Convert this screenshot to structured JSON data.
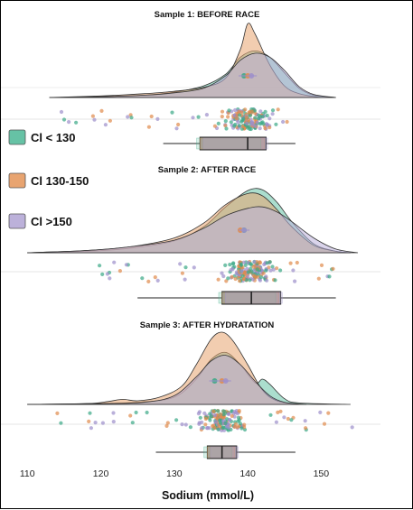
{
  "chart_data": {
    "type": "raincloud",
    "xlabel": "Sodium (mmol/L)",
    "xlim": [
      108,
      155
    ],
    "x_ticks": [
      110,
      120,
      130,
      140,
      150
    ],
    "grid": false,
    "legend": {
      "placement": "left",
      "entries": [
        {
          "label": "Cl < 130",
          "color": "#66c2a5"
        },
        {
          "label": "Cl  130-150",
          "color": "#e8a470"
        },
        {
          "label": "Cl  >150",
          "color": "#bcb1da"
        }
      ]
    },
    "panels": [
      {
        "title": "Sample 1: BEFORE RACE",
        "boxplot": {
          "whisker_low": 128.5,
          "q1": 133.5,
          "median": 140.0,
          "q3": 142.5,
          "whisker_high": 146.5
        },
        "points_range": [
          112,
          146
        ],
        "series": [
          {
            "name": "Cl < 130",
            "mean": 139.5,
            "density": [
              [
                113,
                0
              ],
              [
                120,
                0.01
              ],
              [
                126,
                0.03
              ],
              [
                130,
                0.07
              ],
              [
                134,
                0.15
              ],
              [
                137,
                0.3
              ],
              [
                139,
                0.52
              ],
              [
                141,
                0.6
              ],
              [
                143,
                0.52
              ],
              [
                145,
                0.32
              ],
              [
                147,
                0.12
              ],
              [
                149,
                0.03
              ],
              [
                152,
                0
              ]
            ]
          },
          {
            "name": "Cl  130-150",
            "mean": 140.0,
            "density": [
              [
                113,
                0
              ],
              [
                120,
                0.02
              ],
              [
                126,
                0.05
              ],
              [
                130,
                0.08
              ],
              [
                134,
                0.13
              ],
              [
                137,
                0.25
              ],
              [
                139,
                0.62
              ],
              [
                140,
                0.95
              ],
              [
                141,
                0.82
              ],
              [
                143,
                0.42
              ],
              [
                145,
                0.15
              ],
              [
                147,
                0.05
              ],
              [
                150,
                0
              ]
            ]
          },
          {
            "name": "Cl  >150",
            "mean": 140.5,
            "density": [
              [
                113,
                0
              ],
              [
                120,
                0.01
              ],
              [
                126,
                0.03
              ],
              [
                130,
                0.06
              ],
              [
                134,
                0.12
              ],
              [
                137,
                0.28
              ],
              [
                139,
                0.48
              ],
              [
                141,
                0.57
              ],
              [
                143,
                0.52
              ],
              [
                145,
                0.35
              ],
              [
                147,
                0.14
              ],
              [
                149,
                0.04
              ],
              [
                152,
                0
              ]
            ]
          }
        ]
      },
      {
        "title": "Sample 2: AFTER RACE",
        "boxplot": {
          "whisker_low": 125,
          "q1": 136.5,
          "median": 140.5,
          "q3": 144.5,
          "whisker_high": 152
        },
        "points_range": [
          117,
          152
        ],
        "series": [
          {
            "name": "Cl < 130",
            "mean": 139.5,
            "density": [
              [
                110,
                0
              ],
              [
                118,
                0.02
              ],
              [
                124,
                0.06
              ],
              [
                130,
                0.16
              ],
              [
                134,
                0.35
              ],
              [
                137,
                0.62
              ],
              [
                140,
                0.84
              ],
              [
                142,
                0.85
              ],
              [
                144,
                0.68
              ],
              [
                146,
                0.42
              ],
              [
                149,
                0.12
              ],
              [
                152,
                0.02
              ],
              [
                154,
                0
              ]
            ]
          },
          {
            "name": "Cl  130-150",
            "mean": 139.0,
            "density": [
              [
                110,
                0
              ],
              [
                118,
                0.03
              ],
              [
                124,
                0.08
              ],
              [
                130,
                0.2
              ],
              [
                134,
                0.4
              ],
              [
                137,
                0.65
              ],
              [
                140,
                0.8
              ],
              [
                142,
                0.77
              ],
              [
                144,
                0.58
              ],
              [
                146,
                0.35
              ],
              [
                149,
                0.1
              ],
              [
                152,
                0.02
              ],
              [
                154,
                0
              ]
            ]
          },
          {
            "name": "Cl  >150",
            "mean": 139.5,
            "density": [
              [
                110,
                0
              ],
              [
                118,
                0.03
              ],
              [
                124,
                0.08
              ],
              [
                130,
                0.17
              ],
              [
                134,
                0.33
              ],
              [
                137,
                0.5
              ],
              [
                140,
                0.6
              ],
              [
                142,
                0.62
              ],
              [
                144,
                0.55
              ],
              [
                146,
                0.42
              ],
              [
                149,
                0.2
              ],
              [
                152,
                0.05
              ],
              [
                155,
                0
              ]
            ]
          }
        ]
      },
      {
        "title": "Sample 3: AFTER HYDRATATION",
        "boxplot": {
          "whisker_low": 127.5,
          "q1": 134.5,
          "median": 136.5,
          "q3": 138.5,
          "whisker_high": 146.5
        },
        "points_range": [
          114,
          155
        ],
        "series": [
          {
            "name": "Cl < 130",
            "mean": 135.5,
            "density": [
              [
                110,
                0
              ],
              [
                118,
                0.01
              ],
              [
                125,
                0.03
              ],
              [
                130,
                0.1
              ],
              [
                133,
                0.35
              ],
              [
                135,
                0.62
              ],
              [
                137,
                0.72
              ],
              [
                139,
                0.55
              ],
              [
                141,
                0.3
              ],
              [
                142,
                0.35
              ],
              [
                143,
                0.28
              ],
              [
                145,
                0.08
              ],
              [
                147,
                0.02
              ],
              [
                154,
                0
              ]
            ]
          },
          {
            "name": "Cl  130-150",
            "mean": 136.5,
            "density": [
              [
                110,
                0
              ],
              [
                118,
                0.01
              ],
              [
                121,
                0.04
              ],
              [
                123,
                0.07
              ],
              [
                125,
                0.05
              ],
              [
                128,
                0.1
              ],
              [
                131,
                0.25
              ],
              [
                133,
                0.55
              ],
              [
                135,
                0.9
              ],
              [
                136.5,
                1.0
              ],
              [
                138,
                0.88
              ],
              [
                140,
                0.55
              ],
              [
                142,
                0.2
              ],
              [
                144,
                0.05
              ],
              [
                147,
                0
              ]
            ]
          },
          {
            "name": "Cl  >150",
            "mean": 137.0,
            "density": [
              [
                110,
                0
              ],
              [
                120,
                0.01
              ],
              [
                126,
                0.03
              ],
              [
                130,
                0.12
              ],
              [
                133,
                0.38
              ],
              [
                135,
                0.6
              ],
              [
                137,
                0.68
              ],
              [
                139,
                0.55
              ],
              [
                141,
                0.32
              ],
              [
                143,
                0.12
              ],
              [
                145,
                0.03
              ],
              [
                148,
                0
              ]
            ]
          }
        ]
      }
    ]
  }
}
